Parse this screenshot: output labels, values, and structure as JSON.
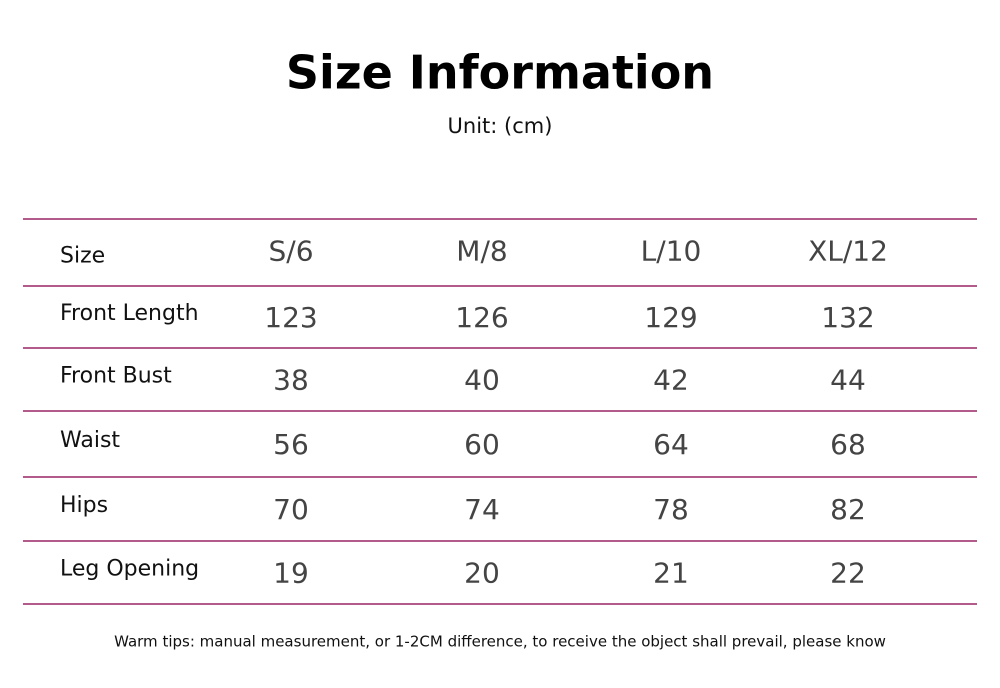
{
  "header": {
    "title": "Size Information",
    "unit": "Unit: (cm)"
  },
  "table": {
    "columns": [
      "Size",
      "S/6",
      "M/8",
      "L/10",
      "XL/12"
    ],
    "rows": [
      [
        "Front Length",
        123,
        126,
        129,
        132
      ],
      [
        "Front Bust",
        38,
        40,
        42,
        44
      ],
      [
        "Waist",
        56,
        60,
        64,
        68
      ],
      [
        "Hips",
        70,
        74,
        78,
        82
      ],
      [
        "Leg Opening",
        19,
        20,
        21,
        22
      ]
    ]
  },
  "footer": {
    "tip": "Warm tips: manual measurement, or 1-2CM difference, to receive the object shall prevail, please know"
  }
}
